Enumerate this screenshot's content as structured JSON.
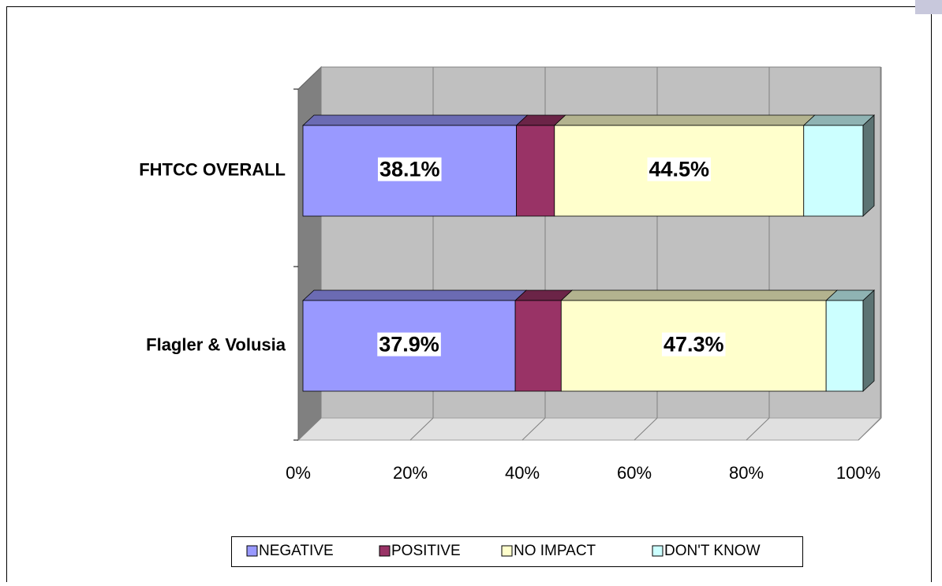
{
  "chart_data": {
    "type": "bar3d_stacked_horizontal",
    "categories": [
      "FHTCC OVERALL",
      "Flagler & Volusia"
    ],
    "series": [
      {
        "name": "NEGATIVE",
        "color": "#9999ff",
        "values": [
          38.1,
          37.9
        ],
        "value_labels": [
          "38.1%",
          "37.9%"
        ]
      },
      {
        "name": "POSITIVE",
        "color": "#993366",
        "values": [
          6.8,
          8.2
        ]
      },
      {
        "name": "NO IMPACT",
        "color": "#ffffcc",
        "values": [
          44.5,
          47.3
        ],
        "value_labels": [
          "44.5%",
          "47.3%"
        ]
      },
      {
        "name": "DON'T KNOW",
        "color": "#ccffff",
        "values": [
          10.6,
          6.6
        ]
      }
    ],
    "xlim": [
      0,
      100
    ],
    "xticks": [
      {
        "value": 0,
        "label": "0%"
      },
      {
        "value": 20,
        "label": "20%"
      },
      {
        "value": 40,
        "label": "40%"
      },
      {
        "value": 60,
        "label": "60%"
      },
      {
        "value": 80,
        "label": "80%"
      },
      {
        "value": 100,
        "label": "100%"
      }
    ],
    "grid": true,
    "legend": "bottom"
  }
}
